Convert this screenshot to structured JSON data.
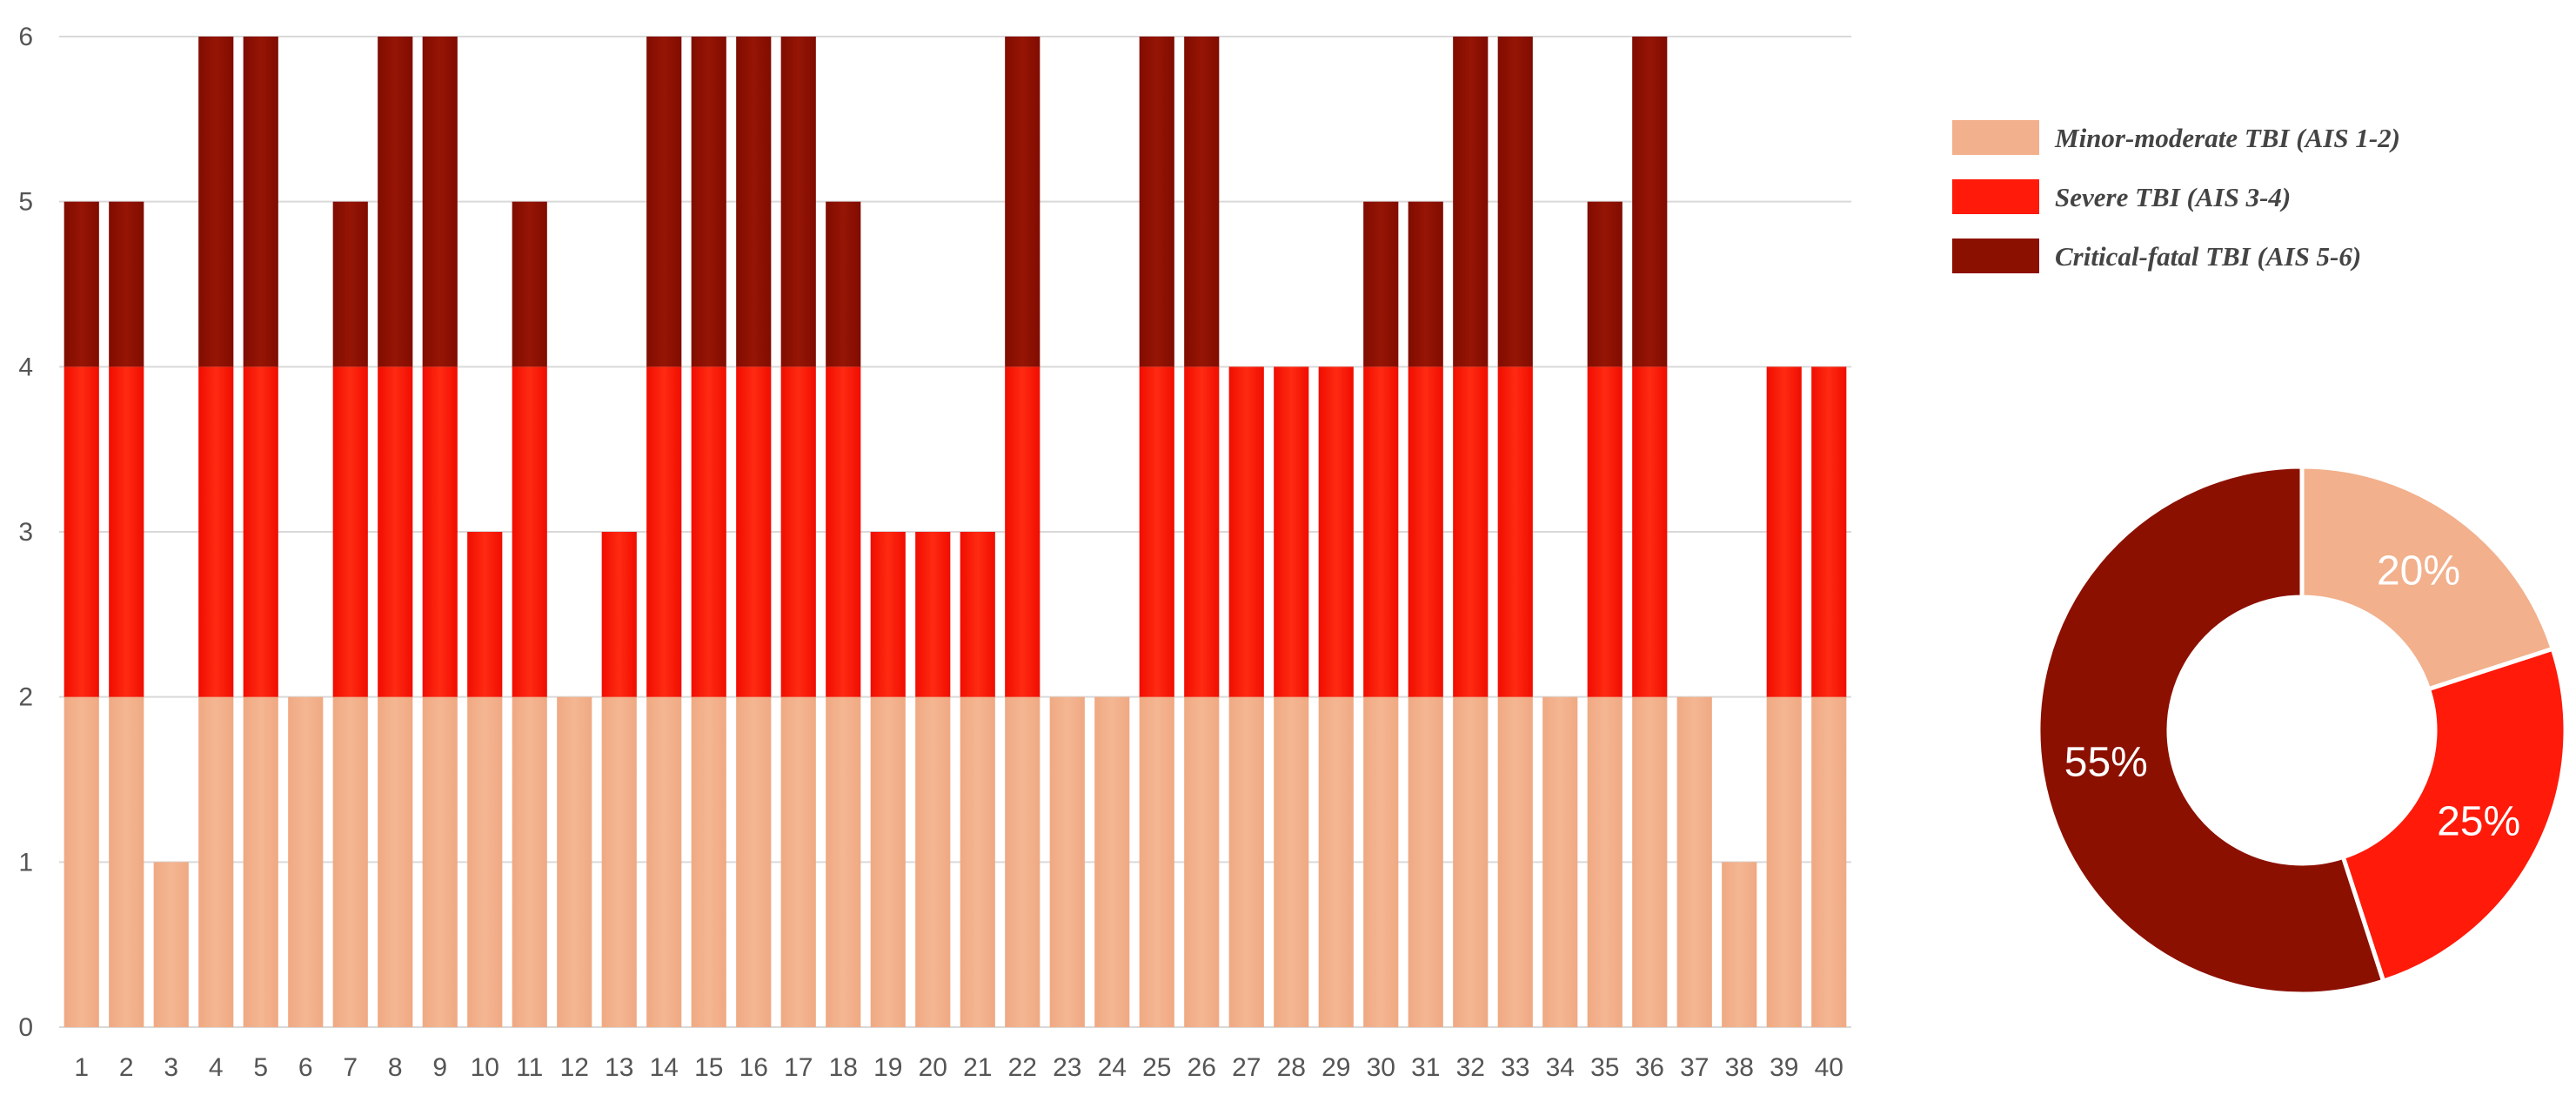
{
  "chart_data": [
    {
      "type": "bar",
      "stacked": true,
      "categories": [
        "1",
        "2",
        "3",
        "4",
        "5",
        "6",
        "7",
        "8",
        "9",
        "10",
        "11",
        "12",
        "13",
        "14",
        "15",
        "16",
        "17",
        "18",
        "19",
        "20",
        "21",
        "22",
        "23",
        "24",
        "25",
        "26",
        "27",
        "28",
        "29",
        "30",
        "31",
        "32",
        "33",
        "34",
        "35",
        "36",
        "37",
        "38",
        "39",
        "40"
      ],
      "series": [
        {
          "name": "Minor-moderate TBI (AIS 1-2)",
          "color": "#f2b08c",
          "values": [
            2,
            2,
            1,
            2,
            2,
            2,
            2,
            2,
            2,
            2,
            2,
            2,
            2,
            2,
            2,
            2,
            2,
            2,
            2,
            2,
            2,
            2,
            2,
            2,
            2,
            2,
            2,
            2,
            2,
            2,
            2,
            2,
            2,
            2,
            2,
            2,
            2,
            1,
            2,
            2
          ]
        },
        {
          "name": "Severe TBI (AIS 3-4)",
          "color": "#ff1a0a",
          "values": [
            2,
            2,
            0,
            2,
            2,
            0,
            2,
            2,
            2,
            1,
            2,
            0,
            1,
            2,
            2,
            2,
            2,
            2,
            1,
            1,
            1,
            2,
            0,
            0,
            2,
            2,
            2,
            2,
            2,
            2,
            2,
            2,
            2,
            0,
            2,
            2,
            0,
            0,
            2,
            2
          ]
        },
        {
          "name": "Critical-fatal TBI (AIS 5-6)",
          "color": "#8c1000",
          "values": [
            1,
            1,
            0,
            2,
            2,
            0,
            1,
            2,
            2,
            0,
            1,
            0,
            0,
            2,
            2,
            2,
            2,
            1,
            0,
            0,
            0,
            2,
            0,
            0,
            2,
            2,
            0,
            0,
            0,
            1,
            1,
            2,
            2,
            0,
            1,
            2,
            0,
            0,
            0,
            0
          ]
        }
      ],
      "y_ticks": [
        "0",
        "1",
        "2",
        "3",
        "4",
        "5",
        "6"
      ],
      "ylim": [
        0,
        6
      ],
      "grid": true,
      "legend_position": "top-right"
    },
    {
      "type": "pie",
      "donut": true,
      "labels": [
        "Minor-moderate TBI (AIS 1-2)",
        "Severe TBI (AIS 3-4)",
        "Critical-fatal TBI (AIS 5-6)"
      ],
      "values": [
        20,
        25,
        55
      ],
      "value_labels": [
        "20%",
        "25%",
        "55%"
      ],
      "colors": [
        "#f2b08c",
        "#ff1a0a",
        "#8c1000"
      ]
    }
  ]
}
